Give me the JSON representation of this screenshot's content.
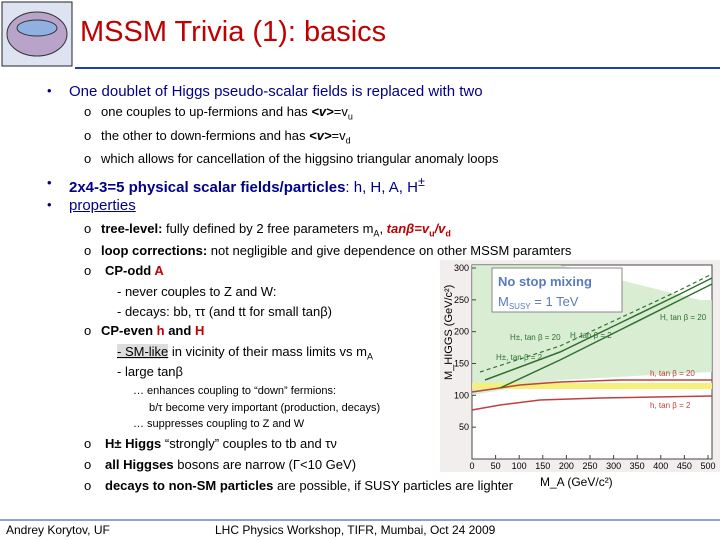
{
  "header": {
    "title": "MSSM Trivia (1): basics"
  },
  "bullets": [
    {
      "text": "One doublet of Higgs pseudo-scalar fields is replaced with two",
      "items": [
        [
          "one couples to up-fermions and has ",
          "<v>",
          "=v",
          "u"
        ],
        [
          "the other to down-fermions and has ",
          "<v>",
          "=v",
          "d"
        ],
        [
          "which allows for cancellation of the higgsino triangular anomaly loops"
        ]
      ]
    },
    {
      "text": [
        "2x4-3=5 physical scalar fields/particles",
        ": h, H, A, H",
        "±"
      ]
    },
    {
      "text": "properties",
      "items": [
        [
          "tree-level:",
          " fully defined by 2 free parameters m",
          "A",
          ", ",
          "tanβ=v",
          "u",
          "/v",
          "d"
        ],
        [
          "loop corrections:",
          " not negligible and give dependence on other MSSM paramters"
        ],
        [
          "CP-odd ",
          "A"
        ],
        [
          "- never couples to Z and W:"
        ],
        [
          "- decays: bb, ττ (and tt for small tanβ)"
        ],
        [
          "CP-even ",
          "h",
          " and ",
          "H"
        ],
        [
          "- SM-like",
          " in vicinity of their mass limits vs m",
          "A"
        ],
        [
          "- large tanβ"
        ],
        [
          "… enhances coupling to “down” fermions:"
        ],
        [
          "b/τ become very important (production, decays)"
        ],
        [
          "… suppresses coupling to Z and W"
        ],
        [
          "H± Higgs",
          " “strongly” couples to tb and τν"
        ],
        [
          "all Higgses",
          " bosons are narrow (Γ<10 GeV)"
        ],
        [
          "decays to non-SM particles",
          " are possible, if SUSY particles are lighter"
        ]
      ]
    }
  ],
  "figure": {
    "legend": [
      "No stop mixing",
      "M",
      "SUSY",
      " = 1 TeV"
    ],
    "curve_labels": [
      "H, tan β = 20",
      "H±, tan β = 20",
      "H±, tan β = 2",
      "H, tan β = 2",
      "h, tan β = 20",
      "h, tan β = 2"
    ],
    "x_label": "M_A (GeV/c²)",
    "y_label": "M_HIGGS (GeV/c²)",
    "xticks": [
      0,
      50,
      100,
      150,
      200,
      250,
      300,
      350,
      400,
      450,
      500
    ],
    "yticks": [
      50,
      100,
      150,
      200,
      250,
      300
    ]
  },
  "footer": {
    "left": "Andrey Korytov, UF",
    "center": "LHC Physics Workshop, TIFR, Mumbai, Oct 24 2009"
  }
}
